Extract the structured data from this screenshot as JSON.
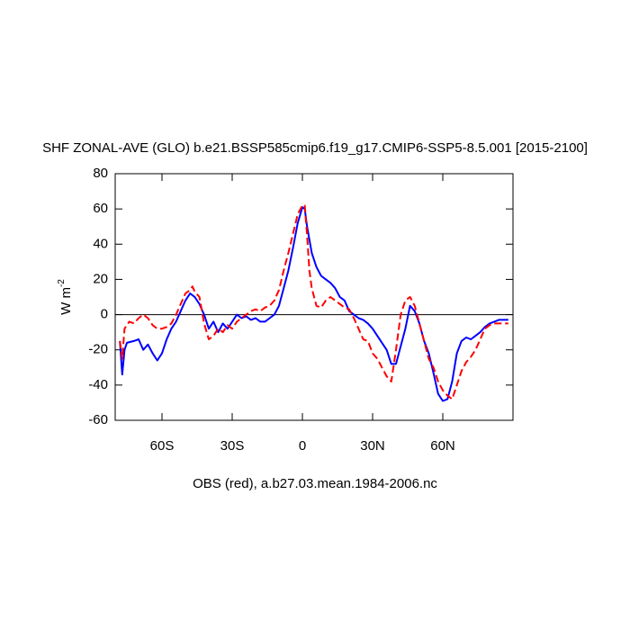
{
  "chart_data": {
    "type": "line",
    "title": "SHF ZONAL-AVE (GLO) b.e21.BSSP585cmip6.f19_g17.CMIP6-SSP5-8.5.001 [2015-2100]",
    "ylabel": "W m",
    "ylabel_superscript": "-2",
    "caption": "OBS (red), a.b27.03.mean.1984-2006.nc",
    "xlim": [
      -80,
      90
    ],
    "ylim": [
      -60,
      80
    ],
    "xticks": [
      {
        "value": -60,
        "label": "60S"
      },
      {
        "value": -30,
        "label": "30S"
      },
      0,
      {
        "value": 30,
        "label": "30N"
      },
      {
        "value": 60,
        "label": "60N"
      }
    ],
    "yticks": [
      -60,
      -40,
      -20,
      0,
      20,
      40,
      60,
      80
    ],
    "reference_line": 0,
    "series": [
      {
        "color": "#0000ff",
        "dash": "none",
        "x": [
          -78,
          -77,
          -76,
          -75,
          -72,
          -70,
          -68,
          -66,
          -64,
          -62,
          -60,
          -58,
          -56,
          -54,
          -52,
          -50,
          -48,
          -46,
          -44,
          -42,
          -40,
          -38,
          -36,
          -34,
          -32,
          -30,
          -28,
          -26,
          -24,
          -22,
          -20,
          -18,
          -16,
          -14,
          -12,
          -10,
          -8,
          -6,
          -4,
          -2,
          0,
          1,
          2,
          4,
          6,
          8,
          10,
          12,
          14,
          16,
          18,
          20,
          22,
          24,
          26,
          28,
          30,
          32,
          34,
          36,
          38,
          40,
          42,
          44,
          46,
          48,
          50,
          52,
          54,
          56,
          58,
          60,
          62,
          64,
          66,
          68,
          70,
          72,
          74,
          76,
          78,
          80,
          82,
          84,
          88
        ],
        "values": [
          -15,
          -34,
          -20,
          -16,
          -15,
          -14,
          -20,
          -17,
          -22,
          -26,
          -22,
          -14,
          -8,
          -4,
          2,
          8,
          12,
          10,
          6,
          0,
          -8,
          -4,
          -10,
          -5,
          -8,
          -4,
          0,
          -2,
          -1,
          -3,
          -2,
          -4,
          -4,
          -2,
          0,
          5,
          15,
          25,
          38,
          52,
          61,
          60,
          50,
          35,
          27,
          22,
          20,
          18,
          15,
          10,
          8,
          2,
          0,
          -2,
          -3,
          -5,
          -8,
          -12,
          -16,
          -20,
          -28,
          -28,
          -18,
          -8,
          5,
          2,
          -5,
          -15,
          -22,
          -33,
          -45,
          -49,
          -48,
          -38,
          -22,
          -15,
          -13,
          -14,
          -12,
          -10,
          -7,
          -5,
          -4,
          -3,
          -3
        ]
      },
      {
        "color": "#ff0000",
        "dash": "8 4",
        "x": [
          -78,
          -77,
          -76,
          -74,
          -72,
          -70,
          -68,
          -66,
          -64,
          -62,
          -60,
          -58,
          -56,
          -54,
          -52,
          -50,
          -48,
          -47,
          -46,
          -44,
          -42,
          -40,
          -38,
          -36,
          -34,
          -32,
          -30,
          -28,
          -26,
          -24,
          -22,
          -20,
          -18,
          -16,
          -14,
          -12,
          -10,
          -8,
          -6,
          -4,
          -2,
          0,
          1,
          2,
          3,
          4,
          6,
          8,
          10,
          12,
          14,
          16,
          18,
          20,
          22,
          24,
          26,
          28,
          30,
          32,
          34,
          36,
          38,
          40,
          42,
          44,
          46,
          48,
          50,
          52,
          54,
          56,
          58,
          60,
          62,
          64,
          66,
          68,
          70,
          72,
          74,
          76,
          78,
          80,
          82,
          84,
          88
        ],
        "values": [
          -15,
          -25,
          -8,
          -4,
          -5,
          -2,
          0,
          -2,
          -6,
          -8,
          -8,
          -7,
          -5,
          0,
          6,
          12,
          14,
          16,
          13,
          10,
          -5,
          -14,
          -12,
          -8,
          -10,
          -6,
          -8,
          -4,
          -2,
          0,
          2,
          3,
          2,
          4,
          5,
          8,
          14,
          25,
          35,
          46,
          57,
          62,
          62,
          45,
          25,
          15,
          5,
          4,
          8,
          10,
          8,
          6,
          4,
          3,
          -2,
          -8,
          -14,
          -15,
          -22,
          -25,
          -30,
          -35,
          -38,
          -20,
          0,
          8,
          10,
          5,
          -5,
          -15,
          -25,
          -30,
          -38,
          -43,
          -46,
          -48,
          -40,
          -32,
          -27,
          -24,
          -20,
          -14,
          -8,
          -6,
          -5,
          -5,
          -5
        ]
      }
    ]
  }
}
